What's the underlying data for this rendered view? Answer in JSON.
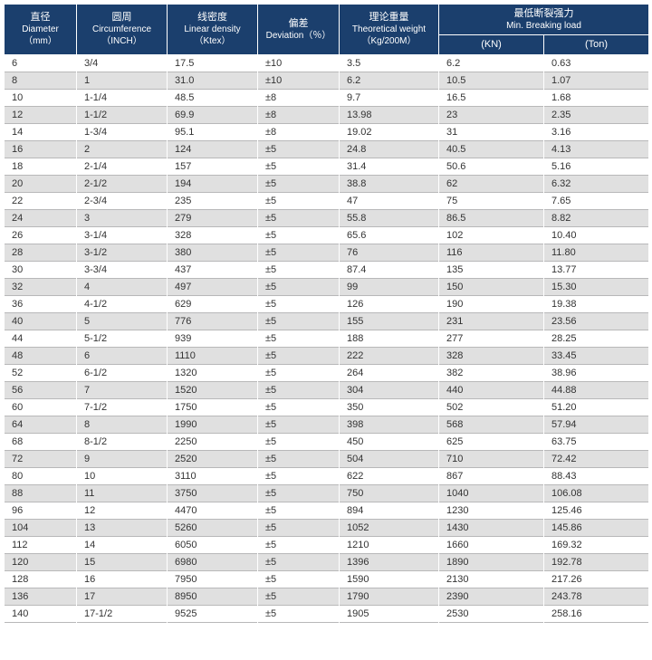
{
  "colors": {
    "header_bg": "#1b3f6d",
    "header_text": "#ffffff",
    "row_odd": "#ffffff",
    "row_even": "#e0e0e0",
    "border": "#b8b8b9",
    "text": "#333333"
  },
  "headers": {
    "diameter": {
      "cn": "直径",
      "en": "Diameter",
      "unit": "（mm）"
    },
    "circ": {
      "cn": "圆周",
      "en": "Circumference",
      "unit": "（INCH）"
    },
    "density": {
      "cn": "线密度",
      "en": "Linear density",
      "unit": "（Ktex）"
    },
    "deviation": {
      "cn": "偏差",
      "en": "Deviation（％）",
      "unit": ""
    },
    "weight": {
      "cn": "理论重量",
      "en": "Theoretical weight",
      "unit": "（Kg/200M）"
    },
    "breakgroup": {
      "cn": "最低断裂强力",
      "en": "Min. Breaking load",
      "unit": ""
    },
    "kn": "(KN)",
    "ton": "(Ton)"
  },
  "rows": [
    [
      "6",
      "3/4",
      "17.5",
      "±10",
      "3.5",
      "6.2",
      "0.63"
    ],
    [
      "8",
      "1",
      "31.0",
      "±10",
      "6.2",
      "10.5",
      "1.07"
    ],
    [
      "10",
      "1-1/4",
      "48.5",
      "±8",
      "9.7",
      "16.5",
      "1.68"
    ],
    [
      "12",
      "1-1/2",
      "69.9",
      "±8",
      "13.98",
      "23",
      "2.35"
    ],
    [
      "14",
      "1-3/4",
      "95.1",
      "±8",
      "19.02",
      "31",
      "3.16"
    ],
    [
      "16",
      "2",
      "124",
      "±5",
      "24.8",
      "40.5",
      "4.13"
    ],
    [
      "18",
      "2-1/4",
      "157",
      "±5",
      "31.4",
      "50.6",
      "5.16"
    ],
    [
      "20",
      "2-1/2",
      "194",
      "±5",
      "38.8",
      "62",
      "6.32"
    ],
    [
      "22",
      "2-3/4",
      "235",
      "±5",
      "47",
      "75",
      "7.65"
    ],
    [
      "24",
      "3",
      "279",
      "±5",
      "55.8",
      "86.5",
      "8.82"
    ],
    [
      "26",
      "3-1/4",
      "328",
      "±5",
      "65.6",
      "102",
      "10.40"
    ],
    [
      "28",
      "3-1/2",
      "380",
      "±5",
      "76",
      "116",
      "11.80"
    ],
    [
      "30",
      "3-3/4",
      "437",
      "±5",
      "87.4",
      "135",
      "13.77"
    ],
    [
      "32",
      "4",
      "497",
      "±5",
      "99",
      "150",
      "15.30"
    ],
    [
      "36",
      "4-1/2",
      "629",
      "±5",
      "126",
      "190",
      "19.38"
    ],
    [
      "40",
      "5",
      "776",
      "±5",
      "155",
      "231",
      "23.56"
    ],
    [
      "44",
      "5-1/2",
      "939",
      "±5",
      "188",
      "277",
      "28.25"
    ],
    [
      "48",
      "6",
      "1110",
      "±5",
      "222",
      "328",
      "33.45"
    ],
    [
      "52",
      "6-1/2",
      "1320",
      "±5",
      "264",
      "382",
      "38.96"
    ],
    [
      "56",
      "7",
      "1520",
      "±5",
      "304",
      "440",
      "44.88"
    ],
    [
      "60",
      "7-1/2",
      "1750",
      "±5",
      "350",
      "502",
      "51.20"
    ],
    [
      "64",
      "8",
      "1990",
      "±5",
      "398",
      "568",
      "57.94"
    ],
    [
      "68",
      "8-1/2",
      "2250",
      "±5",
      "450",
      "625",
      "63.75"
    ],
    [
      "72",
      "9",
      "2520",
      "±5",
      "504",
      "710",
      "72.42"
    ],
    [
      "80",
      "10",
      "3110",
      "±5",
      "622",
      "867",
      "88.43"
    ],
    [
      "88",
      "11",
      "3750",
      "±5",
      "750",
      "1040",
      "106.08"
    ],
    [
      "96",
      "12",
      "4470",
      "±5",
      "894",
      "1230",
      "125.46"
    ],
    [
      "104",
      "13",
      "5260",
      "±5",
      "1052",
      "1430",
      "145.86"
    ],
    [
      "112",
      "14",
      "6050",
      "±5",
      "1210",
      "1660",
      "169.32"
    ],
    [
      "120",
      "15",
      "6980",
      "±5",
      "1396",
      "1890",
      "192.78"
    ],
    [
      "128",
      "16",
      "7950",
      "±5",
      "1590",
      "2130",
      "217.26"
    ],
    [
      "136",
      "17",
      "8950",
      "±5",
      "1790",
      "2390",
      "243.78"
    ],
    [
      "140",
      "17-1/2",
      "9525",
      "±5",
      "1905",
      "2530",
      "258.16"
    ]
  ]
}
